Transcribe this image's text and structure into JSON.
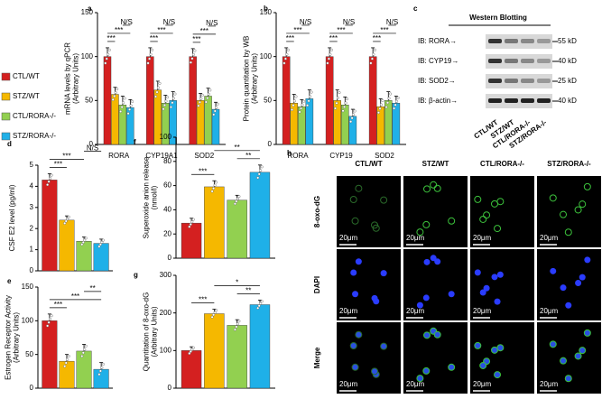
{
  "legend": {
    "items": [
      {
        "name": "CTL/WT",
        "color": "#d42020"
      },
      {
        "name": "STZ/WT",
        "color": "#f5b800"
      },
      {
        "name": "CTL/RORA-/-",
        "color": "#92d050"
      },
      {
        "name": "STZ/RORA-/-",
        "color": "#1fb0e8"
      }
    ]
  },
  "chart_data": [
    {
      "panel": "a",
      "type": "bar",
      "ylabel": [
        "mRNA levels by qPCR",
        "(Arbitrary Units)"
      ],
      "categories": [
        "RORA",
        "CYP19A1",
        "SOD2"
      ],
      "ylim": [
        0,
        150
      ],
      "yticks": [
        0,
        50,
        100,
        150
      ],
      "series": [
        {
          "values": [
            100,
            100,
            100
          ],
          "errors": [
            10,
            10,
            9
          ]
        },
        {
          "values": [
            57,
            62,
            50
          ],
          "errors": [
            8,
            10,
            8
          ]
        },
        {
          "values": [
            45,
            47,
            55
          ],
          "errors": [
            10,
            9,
            9
          ]
        },
        {
          "values": [
            42,
            50,
            40
          ],
          "errors": [
            9,
            10,
            8
          ]
        }
      ],
      "brackets": [
        {
          "category": "RORA",
          "between": [
            "CTL/WT",
            "STZ/WT"
          ],
          "label": "***"
        },
        {
          "category": "RORA",
          "between": [
            "CTL/WT",
            "STZ/RORA-/-"
          ],
          "label": "***"
        },
        {
          "category": "RORA",
          "between": [
            "CTL/RORA-/-",
            "STZ/RORA-/-"
          ],
          "label": "N/S"
        },
        {
          "category": "CYP19A1",
          "between": [
            "CTL/WT",
            "STZ/WT"
          ],
          "label": "***"
        },
        {
          "category": "CYP19A1",
          "between": [
            "CTL/WT",
            "STZ/RORA-/-"
          ],
          "label": "***"
        },
        {
          "category": "CYP19A1",
          "between": [
            "CTL/RORA-/-",
            "STZ/RORA-/-"
          ],
          "label": "N/S"
        },
        {
          "category": "SOD2",
          "between": [
            "CTL/WT",
            "STZ/WT"
          ],
          "label": "***"
        },
        {
          "category": "SOD2",
          "between": [
            "CTL/WT",
            "STZ/RORA-/-"
          ],
          "label": "***"
        },
        {
          "category": "SOD2",
          "between": [
            "CTL/RORA-/-",
            "STZ/RORA-/-"
          ],
          "label": "N/S"
        }
      ]
    },
    {
      "panel": "b",
      "type": "bar",
      "ylabel": [
        "Protein quantitation by WB",
        "(Arbitrary Units)"
      ],
      "categories": [
        "RORA",
        "CYP19",
        "SOD2"
      ],
      "ylim": [
        0,
        150
      ],
      "yticks": [
        0,
        50,
        100,
        150
      ],
      "series": [
        {
          "values": [
            100,
            100,
            100
          ],
          "errors": [
            10,
            10,
            10
          ]
        },
        {
          "values": [
            47,
            50,
            43
          ],
          "errors": [
            10,
            12,
            9
          ]
        },
        {
          "values": [
            43,
            45,
            50
          ],
          "errors": [
            8,
            9,
            10
          ]
        },
        {
          "values": [
            52,
            32,
            47
          ],
          "errors": [
            10,
            8,
            8
          ]
        }
      ],
      "brackets": [
        {
          "category": "RORA",
          "between": [
            "CTL/WT",
            "STZ/WT"
          ],
          "label": "***"
        },
        {
          "category": "RORA",
          "between": [
            "CTL/WT",
            "STZ/RORA-/-"
          ],
          "label": "***"
        },
        {
          "category": "RORA",
          "between": [
            "CTL/RORA-/-",
            "STZ/RORA-/-"
          ],
          "label": "N/S"
        },
        {
          "category": "CYP19",
          "between": [
            "CTL/WT",
            "STZ/WT"
          ],
          "label": "***"
        },
        {
          "category": "CYP19",
          "between": [
            "CTL/WT",
            "STZ/RORA-/-"
          ],
          "label": "***"
        },
        {
          "category": "CYP19",
          "between": [
            "CTL/RORA-/-",
            "STZ/RORA-/-"
          ],
          "label": "N/S"
        },
        {
          "category": "SOD2",
          "between": [
            "CTL/WT",
            "STZ/WT"
          ],
          "label": "***"
        },
        {
          "category": "SOD2",
          "between": [
            "CTL/WT",
            "STZ/RORA-/-"
          ],
          "label": "***"
        },
        {
          "category": "SOD2",
          "between": [
            "CTL/RORA-/-",
            "STZ/RORA-/-"
          ],
          "label": "N/S"
        }
      ]
    },
    {
      "panel": "d",
      "type": "bar",
      "ylabel": [
        "CSF E2 level (pg/ml)"
      ],
      "ylim": [
        0,
        5
      ],
      "yticks": [
        0,
        1,
        2,
        3,
        4,
        5
      ],
      "series": [
        {
          "values": [
            4.3
          ],
          "errors": [
            0.3
          ]
        },
        {
          "values": [
            2.4
          ],
          "errors": [
            0.2
          ]
        },
        {
          "values": [
            1.4
          ],
          "errors": [
            0.2
          ]
        },
        {
          "values": [
            1.3
          ],
          "errors": [
            0.2
          ]
        }
      ],
      "brackets": [
        {
          "between": [
            "CTL/WT",
            "STZ/WT"
          ],
          "label": "***"
        },
        {
          "between": [
            "CTL/WT",
            "CTL/RORA-/-"
          ],
          "label": "***"
        },
        {
          "between": [
            "CTL/RORA-/-",
            "STZ/RORA-/-"
          ],
          "label": "N/S"
        }
      ]
    },
    {
      "panel": "e",
      "type": "bar",
      "ylabel": [
        "Estrogen Receptor Activity",
        "(Arbitrary Units)"
      ],
      "ylim": [
        0,
        150
      ],
      "yticks": [
        0,
        50,
        100,
        150
      ],
      "series": [
        {
          "values": [
            100
          ],
          "errors": [
            10
          ]
        },
        {
          "values": [
            40
          ],
          "errors": [
            10
          ]
        },
        {
          "values": [
            55
          ],
          "errors": [
            10
          ]
        },
        {
          "values": [
            28
          ],
          "errors": [
            10
          ]
        }
      ],
      "brackets": [
        {
          "between": [
            "CTL/WT",
            "STZ/WT"
          ],
          "label": "***"
        },
        {
          "between": [
            "CTL/WT",
            "STZ/RORA-/-"
          ],
          "label": "***"
        },
        {
          "between": [
            "CTL/RORA-/-",
            "STZ/RORA-/-"
          ],
          "label": "**"
        }
      ]
    },
    {
      "panel": "f",
      "type": "bar",
      "ylabel": [
        "Superoxide anion release",
        "(nmol/l)"
      ],
      "ylim": [
        0,
        100
      ],
      "yticks": [
        0,
        20,
        40,
        60,
        80,
        100
      ],
      "series": [
        {
          "values": [
            29
          ],
          "errors": [
            4
          ]
        },
        {
          "values": [
            59
          ],
          "errors": [
            5
          ]
        },
        {
          "values": [
            48
          ],
          "errors": [
            4
          ]
        },
        {
          "values": [
            71
          ],
          "errors": [
            6
          ]
        }
      ],
      "brackets": [
        {
          "between": [
            "CTL/WT",
            "STZ/WT"
          ],
          "label": "***"
        },
        {
          "between": [
            "CTL/RORA-/-",
            "STZ/RORA-/-"
          ],
          "label": "**"
        },
        {
          "between": [
            "STZ/WT",
            "STZ/RORA-/-"
          ],
          "label": "**"
        }
      ]
    },
    {
      "panel": "g",
      "type": "bar",
      "ylabel": [
        "Quantitation of 8-oxo-dG",
        "(Arbitrary Units)"
      ],
      "ylim": [
        0,
        300
      ],
      "yticks": [
        0,
        100,
        200,
        300
      ],
      "series": [
        {
          "values": [
            100
          ],
          "errors": [
            10
          ]
        },
        {
          "values": [
            198
          ],
          "errors": [
            12
          ]
        },
        {
          "values": [
            167
          ],
          "errors": [
            15
          ]
        },
        {
          "values": [
            222
          ],
          "errors": [
            12
          ]
        }
      ],
      "brackets": [
        {
          "between": [
            "CTL/WT",
            "STZ/WT"
          ],
          "label": "***"
        },
        {
          "between": [
            "CTL/RORA-/-",
            "STZ/RORA-/-"
          ],
          "label": "**"
        },
        {
          "between": [
            "STZ/WT",
            "STZ/RORA-/-"
          ],
          "label": "*"
        }
      ]
    }
  ],
  "western_blot": {
    "panel": "c",
    "title": "Western Blotting",
    "rows": [
      {
        "label": "IB: RORA→",
        "size": "55 kD"
      },
      {
        "label": "IB: CYP19→",
        "size": "40 kD"
      },
      {
        "label": "IB: SOD2→",
        "size": "25 kD"
      },
      {
        "label": "IB: β-actin→",
        "size": "40 kD"
      }
    ],
    "lanes": [
      "CTL/WT",
      "STZ/WT",
      "CTL/RORA-/-",
      "STZ/RORA-/-"
    ]
  },
  "microscopy": {
    "panel": "h",
    "columns": [
      "CTL/WT",
      "STZ/WT",
      "CTL/RORA-/-",
      "STZ/RORA-/-"
    ],
    "rows": [
      "8-oxo-dG",
      "DAPI",
      "Merge"
    ],
    "scale_bar": "20μm"
  }
}
